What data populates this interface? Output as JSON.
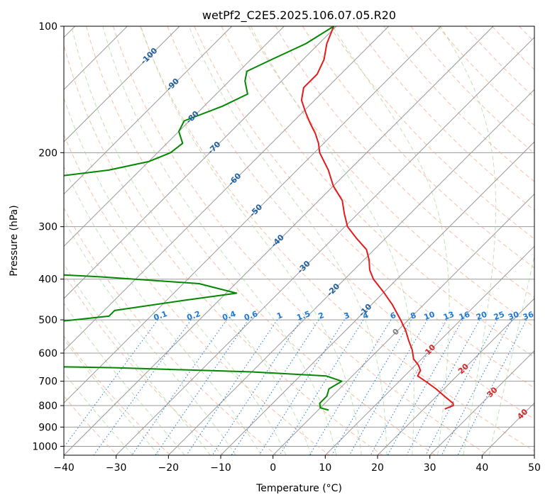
{
  "chart_data": {
    "type": "skew-t",
    "title": "wetPf2_C2E5.2025.106.07.05.R20",
    "xlabel": "Temperature (°C)",
    "ylabel": "Pressure (hPa)",
    "xlim": [
      -40,
      50
    ],
    "ylim": [
      1050,
      100
    ],
    "y_scale": "log",
    "skew": "45 degrees",
    "grid": true,
    "x_ticks": [
      "−40",
      "−30",
      "−20",
      "−10",
      "0",
      "10",
      "20",
      "30",
      "40",
      "50"
    ],
    "y_ticks": [
      "100",
      "200",
      "300",
      "400",
      "500",
      "600",
      "700",
      "800",
      "900",
      "1000"
    ],
    "colors": {
      "temperature": "#e41a1c",
      "dewpoint": "#008800",
      "isotherm": "#999999",
      "dry_adiabat": "#f4a582",
      "moist_adiabat": "#a6d49a",
      "mixing_ratio": "#1f78d4",
      "isotherm_label": "#1f5fa0",
      "warm_isotherm_label": "#d62728",
      "zero_label": "#7f7f7f",
      "frame": "#000000"
    },
    "isotherm_labels": [
      {
        "t": -100,
        "p": 118,
        "text": "-100"
      },
      {
        "t": -90,
        "p": 138,
        "text": "-90"
      },
      {
        "t": -80,
        "p": 165,
        "text": "-80"
      },
      {
        "t": -70,
        "p": 195,
        "text": "-70"
      },
      {
        "t": -60,
        "p": 232,
        "text": "-60"
      },
      {
        "t": -50,
        "p": 275,
        "text": "-50"
      },
      {
        "t": -40,
        "p": 325,
        "text": "-40"
      },
      {
        "t": -30,
        "p": 375,
        "text": "-30"
      },
      {
        "t": -20,
        "p": 425,
        "text": "-20"
      },
      {
        "t": -10,
        "p": 475,
        "text": "-10"
      },
      {
        "t": 0,
        "p": 535,
        "text": "0"
      },
      {
        "t": 10,
        "p": 590,
        "text": "10"
      },
      {
        "t": 20,
        "p": 655,
        "text": "20"
      },
      {
        "t": 30,
        "p": 745,
        "text": "30"
      },
      {
        "t": 40,
        "p": 840,
        "text": "40"
      }
    ],
    "mixing_ratio_labels": [
      "0.1",
      "0.2",
      "0.4",
      "0.6",
      "1",
      "1.5",
      "2",
      "3",
      "4",
      "6",
      "8",
      "10",
      "13",
      "16",
      "20",
      "25",
      "30",
      "36"
    ],
    "mixing_ratio_values": [
      0.1,
      0.2,
      0.4,
      0.6,
      1,
      1.5,
      2,
      3,
      4,
      6,
      8,
      10,
      13,
      16,
      20,
      25,
      30,
      36
    ],
    "series": [
      {
        "variable": "temperature",
        "points": [
          {
            "p": 100,
            "t": -70.5
          },
          {
            "p": 110,
            "t": -68.5
          },
          {
            "p": 120,
            "t": -66.0
          },
          {
            "p": 130,
            "t": -64.5
          },
          {
            "p": 140,
            "t": -64.5
          },
          {
            "p": 150,
            "t": -62.5
          },
          {
            "p": 160,
            "t": -59.5
          },
          {
            "p": 170,
            "t": -56.5
          },
          {
            "p": 180,
            "t": -53.5
          },
          {
            "p": 190,
            "t": -51.0
          },
          {
            "p": 200,
            "t": -49.0
          },
          {
            "p": 220,
            "t": -44.0
          },
          {
            "p": 240,
            "t": -40.0
          },
          {
            "p": 260,
            "t": -35.5
          },
          {
            "p": 280,
            "t": -32.5
          },
          {
            "p": 300,
            "t": -29.5
          },
          {
            "p": 320,
            "t": -25.5
          },
          {
            "p": 340,
            "t": -21.5
          },
          {
            "p": 360,
            "t": -19.0
          },
          {
            "p": 380,
            "t": -17.0
          },
          {
            "p": 400,
            "t": -14.5
          },
          {
            "p": 430,
            "t": -10.0
          },
          {
            "p": 460,
            "t": -6.0
          },
          {
            "p": 500,
            "t": -1.5
          },
          {
            "p": 530,
            "t": 1.5
          },
          {
            "p": 560,
            "t": 4.0
          },
          {
            "p": 590,
            "t": 6.5
          },
          {
            "p": 620,
            "t": 8.5
          },
          {
            "p": 640,
            "t": 10.5
          },
          {
            "p": 660,
            "t": 12.0
          },
          {
            "p": 680,
            "t": 12.5
          },
          {
            "p": 700,
            "t": 15.0
          },
          {
            "p": 730,
            "t": 18.5
          },
          {
            "p": 760,
            "t": 21.5
          },
          {
            "p": 790,
            "t": 24.5
          },
          {
            "p": 800,
            "t": 25.0
          },
          {
            "p": 815,
            "t": 24.0
          }
        ]
      },
      {
        "variable": "dewpoint",
        "points": [
          {
            "p": 100,
            "t": -70.5
          },
          {
            "p": 110,
            "t": -72.5
          },
          {
            "p": 120,
            "t": -76.0
          },
          {
            "p": 128,
            "t": -78.5
          },
          {
            "p": 135,
            "t": -77.0
          },
          {
            "p": 145,
            "t": -74.0
          },
          {
            "p": 155,
            "t": -76.5
          },
          {
            "p": 168,
            "t": -81.0
          },
          {
            "p": 178,
            "t": -80.0
          },
          {
            "p": 190,
            "t": -77.0
          },
          {
            "p": 200,
            "t": -77.5
          },
          {
            "p": 210,
            "t": -80.0
          },
          {
            "p": 220,
            "t": -86.0
          },
          {
            "p": 228,
            "t": -95.0
          },
          {
            "p": 240,
            "t": -98.0
          },
          {
            "p": 260,
            "t": -101.0
          },
          {
            "p": 280,
            "t": -101.0
          },
          {
            "p": 300,
            "t": -98.0
          },
          {
            "p": 330,
            "t": -95.0
          },
          {
            "p": 350,
            "t": -93.0
          },
          {
            "p": 370,
            "t": -90.0
          },
          {
            "p": 385,
            "t": -85.0
          },
          {
            "p": 395,
            "t": -67.0
          },
          {
            "p": 410,
            "t": -47.0
          },
          {
            "p": 432,
            "t": -38.0
          },
          {
            "p": 450,
            "t": -47.0
          },
          {
            "p": 475,
            "t": -58.0
          },
          {
            "p": 490,
            "t": -58.0
          },
          {
            "p": 505,
            "t": -67.0
          },
          {
            "p": 520,
            "t": -97.0
          },
          {
            "p": 530,
            "t": -88.0
          },
          {
            "p": 548,
            "t": -83.0
          },
          {
            "p": 560,
            "t": -84.0
          },
          {
            "p": 580,
            "t": -82.0
          },
          {
            "p": 600,
            "t": -84.0
          },
          {
            "p": 618,
            "t": -99.0
          },
          {
            "p": 630,
            "t": -93.0
          },
          {
            "p": 640,
            "t": -81.0
          },
          {
            "p": 650,
            "t": -47.0
          },
          {
            "p": 665,
            "t": -20.0
          },
          {
            "p": 680,
            "t": -5.0
          },
          {
            "p": 700,
            "t": -1.0
          },
          {
            "p": 730,
            "t": -2.0
          },
          {
            "p": 760,
            "t": -1.0
          },
          {
            "p": 790,
            "t": -1.0
          },
          {
            "p": 810,
            "t": 0.0
          },
          {
            "p": 820,
            "t": 2.0
          }
        ]
      }
    ]
  }
}
